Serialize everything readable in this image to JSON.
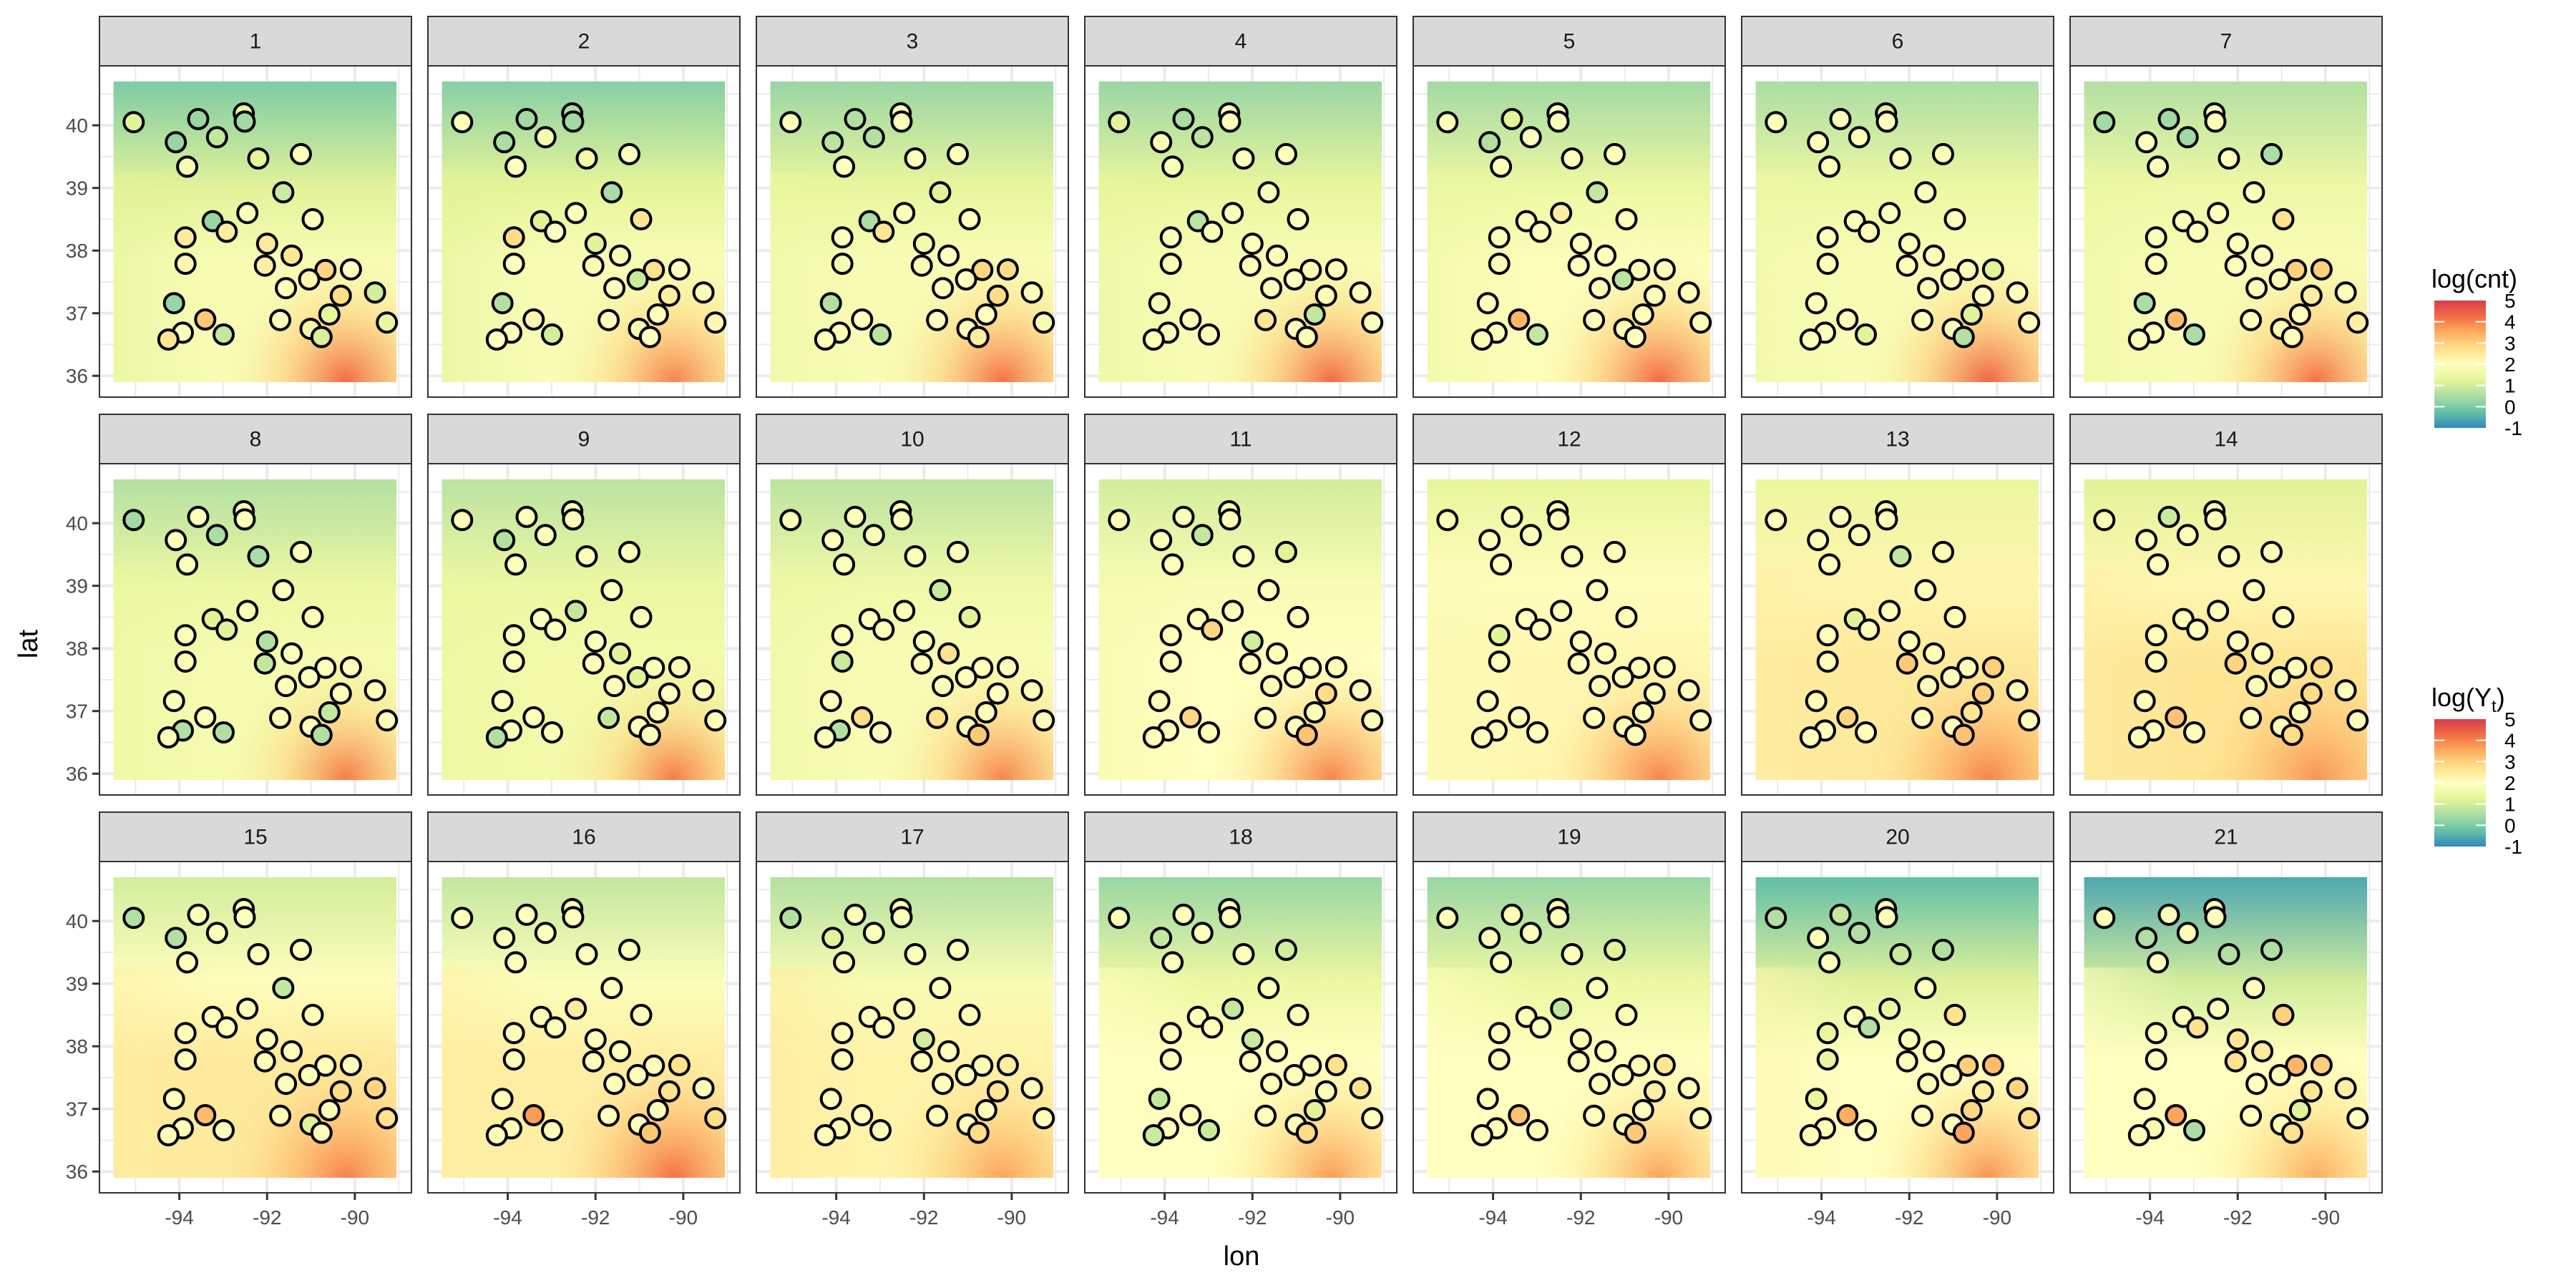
{
  "chart_data": {
    "type": "scatter",
    "title": "",
    "xlabel": "lon",
    "ylabel": "lat",
    "xlim": [
      -95.82,
      -88.71
    ],
    "ylim": [
      35.66,
      40.95
    ],
    "x_ticks": [
      -94,
      -92,
      -90
    ],
    "y_ticks": [
      36,
      37,
      38,
      39,
      40
    ],
    "grid": true,
    "facet_layout": {
      "rows": 3,
      "cols": 7
    },
    "raster_extent": {
      "lon": [
        -95.5,
        -89.05
      ],
      "lat": [
        35.9,
        40.7
      ]
    },
    "legends": [
      {
        "title": "log(cnt)",
        "title_main": "log(cnt)",
        "ticks": [
          5,
          4,
          3,
          2,
          1,
          0,
          -1
        ],
        "range": [
          -1,
          5
        ],
        "placement": "right"
      },
      {
        "title": "log(Y_t)",
        "title_main": "log(Y",
        "title_sub": "t",
        "title_end": ")",
        "ticks": [
          5,
          4,
          3,
          2,
          1,
          0,
          -1
        ],
        "range": [
          -1,
          5
        ],
        "placement": "right"
      }
    ],
    "palette": [
      "#3288BD",
      "#66C2A5",
      "#ABDDA4",
      "#E6F598",
      "#FFFFBF",
      "#FEE08B",
      "#FDAE61",
      "#F46D43",
      "#D53E4F"
    ],
    "stations": {
      "lon": [
        -95.04,
        -93.57,
        -94.08,
        -93.14,
        -92.53,
        -92.51,
        -93.82,
        -92.2,
        -91.23,
        -91.63,
        -92.45,
        -93.24,
        -92.92,
        -93.86,
        -90.96,
        -92.0,
        -91.44,
        -93.86,
        -92.05,
        -90.67,
        -90.09,
        -91.04,
        -91.57,
        -90.32,
        -89.54,
        -94.12,
        -90.58,
        -91.7,
        -93.41,
        -91.01,
        -90.76,
        -89.27,
        -93.92,
        -94.25,
        -92.99
      ],
      "lat": [
        40.05,
        40.1,
        39.73,
        39.81,
        40.19,
        40.06,
        39.34,
        39.47,
        39.54,
        38.93,
        38.6,
        38.47,
        38.3,
        38.21,
        38.5,
        38.11,
        37.92,
        37.79,
        37.76,
        37.69,
        37.7,
        37.54,
        37.4,
        37.28,
        37.33,
        37.16,
        36.98,
        36.89,
        36.9,
        36.75,
        36.62,
        36.85,
        36.69,
        36.58,
        36.66
      ]
    },
    "panels": [
      {
        "label": "1",
        "field": {
          "north": 0.0,
          "center": 1.8,
          "southeast": 4.3,
          "west": 1.2
        },
        "values": [
          1.2,
          0.3,
          0.3,
          0.8,
          1.3,
          0.4,
          1.8,
          1.3,
          1.9,
          0.9,
          1.9,
          0.3,
          2.4,
          2.5,
          2.0,
          2.5,
          2.6,
          2.2,
          2.4,
          2.9,
          2.0,
          2.2,
          1.9,
          2.8,
          1.0,
          0.3,
          1.3,
          2.0,
          3.1,
          1.6,
          1.1,
          1.4,
          1.9,
          2.6,
          0.8
        ]
      },
      {
        "label": "2",
        "field": {
          "north": 0.1,
          "center": 1.8,
          "southeast": 4.0,
          "west": 1.2
        },
        "values": [
          1.9,
          0.4,
          0.5,
          1.7,
          0.5,
          0.4,
          2.0,
          1.6,
          1.9,
          0.5,
          1.9,
          1.2,
          2.0,
          2.8,
          2.6,
          1.2,
          1.8,
          2.0,
          1.8,
          2.7,
          2.0,
          0.9,
          1.9,
          2.4,
          1.8,
          0.6,
          1.9,
          2.0,
          2.2,
          1.7,
          2.0,
          2.2,
          1.9,
          2.0,
          1.0
        ]
      },
      {
        "label": "3",
        "field": {
          "north": 0.3,
          "center": 1.8,
          "southeast": 4.2,
          "west": 1.4
        },
        "values": [
          1.9,
          0.6,
          0.7,
          0.6,
          1.9,
          1.9,
          2.0,
          1.9,
          1.9,
          1.2,
          1.9,
          0.5,
          2.6,
          1.9,
          2.0,
          1.6,
          2.0,
          1.7,
          1.8,
          2.9,
          2.8,
          2.0,
          1.9,
          2.8,
          2.0,
          0.6,
          2.0,
          2.0,
          2.0,
          1.9,
          2.4,
          1.8,
          1.9,
          1.9,
          0.7
        ]
      },
      {
        "label": "4",
        "field": {
          "north": 0.3,
          "center": 1.8,
          "southeast": 4.3,
          "west": 1.3
        },
        "values": [
          1.2,
          0.5,
          1.9,
          0.7,
          1.9,
          1.9,
          1.9,
          1.9,
          1.9,
          1.8,
          1.9,
          0.7,
          1.9,
          1.9,
          2.0,
          1.9,
          1.9,
          1.8,
          1.9,
          1.8,
          1.9,
          2.0,
          1.9,
          1.8,
          1.9,
          1.8,
          0.8,
          2.6,
          1.9,
          1.9,
          1.9,
          1.9,
          1.9,
          1.9,
          1.9
        ]
      },
      {
        "label": "5",
        "field": {
          "north": 0.4,
          "center": 1.9,
          "southeast": 4.3,
          "west": 1.4
        },
        "values": [
          1.9,
          1.2,
          0.6,
          1.9,
          1.9,
          1.9,
          1.9,
          1.9,
          1.9,
          0.8,
          2.4,
          1.9,
          1.9,
          1.9,
          1.9,
          1.9,
          1.9,
          1.9,
          1.9,
          1.9,
          1.9,
          0.7,
          1.9,
          1.9,
          1.9,
          1.9,
          1.9,
          1.9,
          3.4,
          1.9,
          2.0,
          1.9,
          1.9,
          1.9,
          0.8
        ]
      },
      {
        "label": "6",
        "field": {
          "north": 0.5,
          "center": 1.8,
          "southeast": 4.4,
          "west": 1.5
        },
        "values": [
          1.9,
          1.9,
          1.9,
          1.9,
          1.2,
          1.9,
          1.9,
          1.9,
          1.9,
          1.9,
          1.9,
          1.9,
          1.9,
          1.9,
          1.9,
          1.9,
          1.9,
          1.9,
          1.9,
          2.1,
          1.2,
          1.9,
          1.9,
          2.0,
          1.9,
          1.9,
          1.2,
          1.9,
          1.9,
          1.9,
          0.6,
          1.9,
          1.9,
          1.9,
          1.2
        ]
      },
      {
        "label": "7",
        "field": {
          "north": 0.6,
          "center": 1.8,
          "southeast": 4.2,
          "west": 1.4
        },
        "values": [
          0.4,
          0.4,
          1.9,
          0.4,
          1.9,
          1.9,
          1.9,
          1.9,
          0.5,
          1.9,
          1.9,
          1.9,
          1.9,
          1.9,
          2.7,
          1.9,
          1.9,
          1.9,
          1.9,
          3.0,
          3.0,
          1.9,
          1.9,
          2.4,
          1.9,
          0.5,
          1.9,
          1.9,
          3.3,
          1.9,
          1.9,
          2.4,
          1.9,
          1.9,
          0.5
        ]
      },
      {
        "label": "8",
        "field": {
          "north": 0.6,
          "center": 1.7,
          "southeast": 4.1,
          "west": 1.4
        },
        "values": [
          0.4,
          1.9,
          1.9,
          0.5,
          1.9,
          1.9,
          1.9,
          0.5,
          1.9,
          1.9,
          1.9,
          1.2,
          1.2,
          1.9,
          1.9,
          0.6,
          1.9,
          1.9,
          0.8,
          1.9,
          1.9,
          1.9,
          1.9,
          1.9,
          1.9,
          1.9,
          0.8,
          1.9,
          1.9,
          1.9,
          0.6,
          1.9,
          0.6,
          1.9,
          0.6
        ]
      },
      {
        "label": "9",
        "field": {
          "north": 0.7,
          "center": 1.6,
          "southeast": 4.1,
          "west": 1.4
        },
        "values": [
          1.9,
          1.9,
          0.6,
          1.9,
          1.9,
          1.9,
          1.9,
          1.9,
          1.9,
          1.9,
          0.8,
          1.9,
          1.9,
          1.9,
          1.9,
          1.9,
          1.2,
          1.9,
          1.9,
          1.9,
          1.9,
          1.2,
          1.9,
          1.9,
          1.9,
          1.9,
          1.9,
          0.8,
          1.9,
          1.9,
          1.9,
          1.9,
          1.9,
          0.6,
          1.9
        ]
      },
      {
        "label": "10",
        "field": {
          "north": 0.7,
          "center": 1.8,
          "southeast": 4.0,
          "west": 1.4
        },
        "values": [
          1.9,
          1.9,
          1.9,
          1.9,
          1.9,
          1.9,
          1.9,
          1.9,
          1.9,
          0.9,
          1.9,
          1.9,
          1.9,
          1.9,
          1.2,
          1.9,
          2.7,
          0.9,
          1.9,
          1.9,
          1.9,
          1.9,
          1.9,
          1.9,
          1.9,
          1.9,
          1.9,
          2.7,
          2.8,
          1.9,
          3.1,
          1.9,
          0.6,
          1.9,
          1.9
        ]
      },
      {
        "label": "11",
        "field": {
          "north": 1.0,
          "center": 2.0,
          "southeast": 4.0,
          "west": 1.6
        },
        "values": [
          1.9,
          1.9,
          1.9,
          0.8,
          1.9,
          1.9,
          1.9,
          1.9,
          1.2,
          1.9,
          1.9,
          1.9,
          2.9,
          1.9,
          1.9,
          1.0,
          1.9,
          1.9,
          1.9,
          1.9,
          1.9,
          1.9,
          1.9,
          2.8,
          1.9,
          1.9,
          1.9,
          1.9,
          2.9,
          1.9,
          3.2,
          1.9,
          1.9,
          1.9,
          1.9
        ]
      },
      {
        "label": "12",
        "field": {
          "north": 1.3,
          "center": 2.2,
          "southeast": 4.0,
          "west": 1.8
        },
        "values": [
          1.9,
          1.9,
          1.9,
          1.9,
          1.9,
          1.9,
          1.9,
          1.9,
          1.9,
          1.9,
          1.9,
          1.9,
          1.9,
          1.2,
          1.9,
          1.9,
          1.9,
          1.9,
          1.9,
          1.9,
          1.9,
          1.9,
          1.9,
          1.9,
          1.9,
          1.9,
          1.9,
          1.9,
          1.9,
          1.9,
          1.9,
          1.9,
          1.9,
          1.9,
          1.9
        ]
      },
      {
        "label": "13",
        "field": {
          "north": 1.4,
          "center": 2.5,
          "southeast": 4.0,
          "west": 2.4
        },
        "values": [
          1.9,
          1.9,
          1.9,
          1.9,
          1.9,
          1.9,
          1.9,
          0.8,
          1.9,
          1.9,
          1.9,
          1.2,
          1.9,
          1.9,
          1.9,
          1.9,
          1.9,
          1.9,
          3.1,
          1.9,
          3.0,
          1.9,
          1.9,
          3.0,
          1.9,
          1.9,
          2.6,
          1.9,
          2.9,
          1.9,
          3.2,
          1.9,
          1.9,
          1.9,
          1.9
        ]
      },
      {
        "label": "14",
        "field": {
          "north": 1.2,
          "center": 2.6,
          "southeast": 3.8,
          "west": 2.4
        },
        "values": [
          1.9,
          0.9,
          1.9,
          1.9,
          1.9,
          1.9,
          1.9,
          1.9,
          1.9,
          1.9,
          1.9,
          1.9,
          1.9,
          1.9,
          1.9,
          1.9,
          1.9,
          1.9,
          2.9,
          1.9,
          2.8,
          1.9,
          1.9,
          2.8,
          1.9,
          1.9,
          1.9,
          1.9,
          3.2,
          1.9,
          2.8,
          1.9,
          1.9,
          1.9,
          1.9
        ]
      },
      {
        "label": "15",
        "field": {
          "north": 1.0,
          "center": 2.5,
          "southeast": 4.0,
          "west": 2.4
        },
        "values": [
          0.6,
          1.9,
          0.6,
          1.9,
          1.9,
          1.9,
          1.9,
          1.9,
          1.9,
          0.8,
          1.9,
          1.9,
          1.9,
          1.9,
          1.9,
          1.9,
          1.9,
          1.9,
          1.9,
          1.9,
          1.9,
          1.9,
          1.9,
          2.8,
          2.9,
          1.9,
          1.9,
          1.9,
          3.3,
          1.2,
          1.9,
          2.7,
          1.9,
          1.9,
          1.9
        ]
      },
      {
        "label": "16",
        "field": {
          "north": 0.8,
          "center": 2.4,
          "southeast": 4.2,
          "west": 2.4
        },
        "values": [
          1.9,
          1.9,
          1.9,
          1.9,
          1.9,
          1.9,
          1.9,
          1.9,
          1.9,
          1.9,
          2.5,
          1.9,
          1.9,
          1.9,
          1.9,
          1.9,
          1.9,
          1.9,
          1.9,
          1.9,
          2.7,
          1.9,
          1.9,
          2.7,
          1.9,
          1.9,
          1.9,
          1.9,
          3.7,
          1.9,
          3.1,
          2.8,
          1.9,
          1.9,
          1.9
        ]
      },
      {
        "label": "17",
        "field": {
          "north": 0.6,
          "center": 2.3,
          "southeast": 3.6,
          "west": 2.5
        },
        "values": [
          0.6,
          1.9,
          1.2,
          1.9,
          1.9,
          1.9,
          1.9,
          1.9,
          1.9,
          1.9,
          1.9,
          1.9,
          1.9,
          1.9,
          1.9,
          1.0,
          1.9,
          1.9,
          1.9,
          1.9,
          2.4,
          1.9,
          1.9,
          2.6,
          1.9,
          1.9,
          1.9,
          1.9,
          1.9,
          1.9,
          2.8,
          1.9,
          1.9,
          1.9,
          1.9
        ]
      },
      {
        "label": "18",
        "field": {
          "north": 0.3,
          "center": 2.0,
          "southeast": 3.7,
          "west": 2.0
        },
        "values": [
          1.9,
          1.9,
          0.8,
          1.9,
          1.9,
          1.9,
          1.9,
          1.9,
          1.0,
          1.9,
          0.8,
          1.9,
          1.9,
          1.9,
          1.9,
          0.9,
          1.9,
          1.9,
          1.9,
          1.9,
          2.7,
          1.9,
          1.9,
          1.9,
          2.7,
          0.8,
          1.2,
          1.9,
          1.9,
          1.9,
          2.8,
          1.9,
          1.9,
          0.9,
          0.9
        ]
      },
      {
        "label": "19",
        "field": {
          "north": 0.3,
          "center": 2.0,
          "southeast": 3.6,
          "west": 2.0
        },
        "values": [
          1.9,
          1.9,
          1.9,
          1.9,
          1.9,
          1.9,
          1.9,
          1.9,
          1.2,
          1.9,
          0.8,
          1.9,
          1.9,
          1.9,
          1.9,
          1.9,
          1.9,
          1.9,
          1.9,
          1.9,
          2.6,
          1.9,
          1.9,
          2.4,
          1.9,
          1.9,
          1.9,
          1.9,
          3.2,
          1.9,
          3.1,
          1.9,
          1.9,
          1.9,
          1.9
        ]
      },
      {
        "label": "20",
        "field": {
          "north": -0.3,
          "center": 2.0,
          "southeast": 3.8,
          "west": 2.2
        },
        "values": [
          0.6,
          0.8,
          1.9,
          0.6,
          1.9,
          1.9,
          1.9,
          0.9,
          0.6,
          1.9,
          1.4,
          1.9,
          0.6,
          1.4,
          2.7,
          1.9,
          1.9,
          1.4,
          1.9,
          3.0,
          3.3,
          1.9,
          1.9,
          2.4,
          2.9,
          1.4,
          2.9,
          1.9,
          3.5,
          1.9,
          3.6,
          2.8,
          1.9,
          1.9,
          2.0
        ]
      },
      {
        "label": "21",
        "field": {
          "north": -0.6,
          "center": 2.0,
          "southeast": 3.5,
          "west": 2.0
        },
        "values": [
          1.9,
          1.9,
          0.6,
          2.1,
          1.9,
          1.9,
          1.9,
          0.6,
          0.6,
          1.9,
          1.9,
          1.9,
          2.7,
          1.9,
          3.0,
          2.6,
          2.5,
          1.9,
          2.7,
          3.4,
          3.0,
          1.9,
          2.0,
          2.6,
          2.4,
          1.9,
          1.2,
          2.0,
          3.6,
          1.9,
          2.7,
          2.0,
          2.2,
          1.9,
          0.5
        ]
      }
    ]
  }
}
